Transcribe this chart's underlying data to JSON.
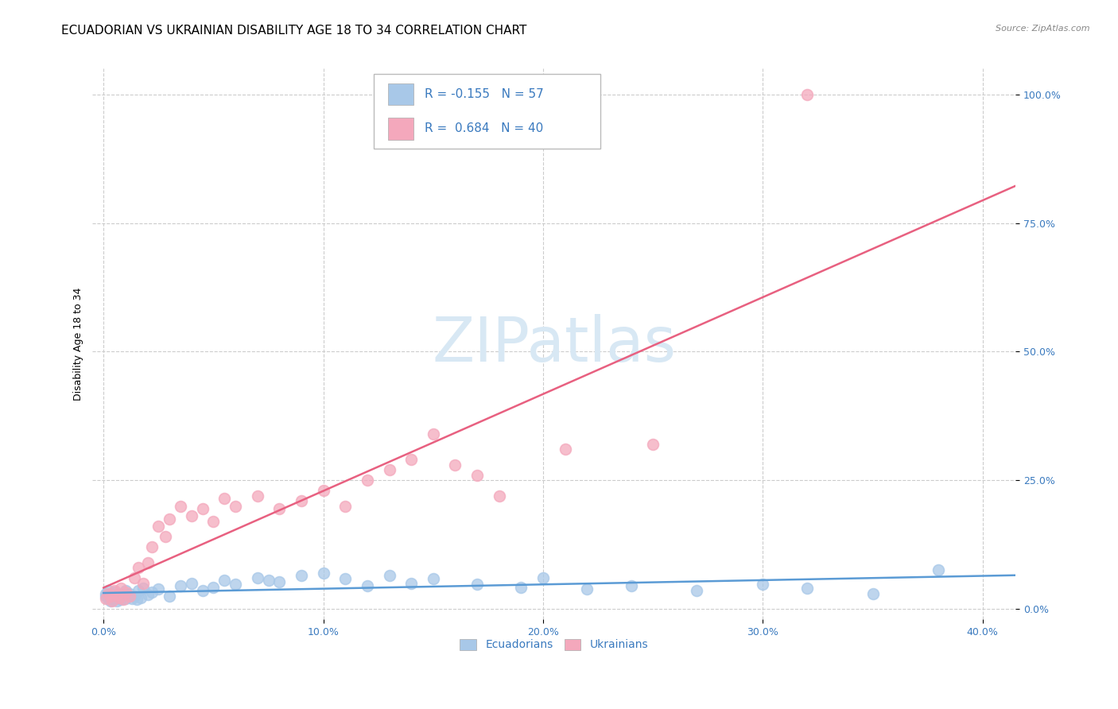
{
  "title": "ECUADORIAN VS UKRAINIAN DISABILITY AGE 18 TO 34 CORRELATION CHART",
  "source": "Source: ZipAtlas.com",
  "xlabel_ticks": [
    "0.0%",
    "10.0%",
    "20.0%",
    "30.0%",
    "40.0%"
  ],
  "xlabel_vals": [
    0.0,
    0.1,
    0.2,
    0.3,
    0.4
  ],
  "ylabel": "Disability Age 18 to 34",
  "ylabel_ticks": [
    "0.0%",
    "25.0%",
    "50.0%",
    "75.0%",
    "100.0%"
  ],
  "ylabel_vals": [
    0.0,
    0.25,
    0.5,
    0.75,
    1.0
  ],
  "xlim": [
    -0.005,
    0.415
  ],
  "ylim": [
    -0.02,
    1.05
  ],
  "ecuadorian_R": -0.155,
  "ecuadorian_N": 57,
  "ukrainian_R": 0.684,
  "ukrainian_N": 40,
  "ecuadorian_color": "#a8c8e8",
  "ukrainian_color": "#f4a8bc",
  "ecuadorian_line_color": "#5b9bd5",
  "ukrainian_line_color": "#e86080",
  "legend_label_ecu": "Ecuadorians",
  "legend_label_ukr": "Ukrainians",
  "title_fontsize": 11,
  "axis_label_fontsize": 9,
  "tick_fontsize": 9,
  "source_fontsize": 8,
  "legend_text_color": "#3a7abf",
  "watermark_color": "#d8e8f4",
  "ecuadorian_x": [
    0.001,
    0.001,
    0.002,
    0.002,
    0.003,
    0.003,
    0.004,
    0.004,
    0.005,
    0.005,
    0.006,
    0.006,
    0.007,
    0.007,
    0.008,
    0.008,
    0.009,
    0.01,
    0.01,
    0.011,
    0.012,
    0.013,
    0.014,
    0.015,
    0.016,
    0.017,
    0.018,
    0.02,
    0.022,
    0.025,
    0.03,
    0.035,
    0.04,
    0.045,
    0.05,
    0.055,
    0.06,
    0.07,
    0.075,
    0.08,
    0.09,
    0.1,
    0.11,
    0.12,
    0.13,
    0.14,
    0.15,
    0.17,
    0.19,
    0.2,
    0.22,
    0.24,
    0.27,
    0.3,
    0.32,
    0.35,
    0.38
  ],
  "ecuadorian_y": [
    0.025,
    0.03,
    0.02,
    0.035,
    0.015,
    0.028,
    0.022,
    0.018,
    0.025,
    0.032,
    0.02,
    0.015,
    0.03,
    0.025,
    0.018,
    0.022,
    0.028,
    0.02,
    0.035,
    0.025,
    0.03,
    0.02,
    0.025,
    0.018,
    0.035,
    0.022,
    0.04,
    0.028,
    0.032,
    0.038,
    0.025,
    0.045,
    0.05,
    0.035,
    0.042,
    0.055,
    0.048,
    0.06,
    0.055,
    0.052,
    0.065,
    0.07,
    0.058,
    0.045,
    0.065,
    0.05,
    0.058,
    0.048,
    0.042,
    0.06,
    0.038,
    0.045,
    0.035,
    0.048,
    0.04,
    0.03,
    0.075
  ],
  "ukrainian_x": [
    0.001,
    0.002,
    0.003,
    0.004,
    0.005,
    0.006,
    0.007,
    0.008,
    0.009,
    0.01,
    0.012,
    0.014,
    0.016,
    0.018,
    0.02,
    0.022,
    0.025,
    0.028,
    0.03,
    0.035,
    0.04,
    0.045,
    0.05,
    0.055,
    0.06,
    0.07,
    0.08,
    0.09,
    0.1,
    0.11,
    0.12,
    0.13,
    0.14,
    0.15,
    0.16,
    0.17,
    0.18,
    0.21,
    0.25,
    0.32
  ],
  "ukrainian_y": [
    0.02,
    0.03,
    0.025,
    0.015,
    0.035,
    0.028,
    0.022,
    0.04,
    0.018,
    0.032,
    0.025,
    0.06,
    0.08,
    0.05,
    0.09,
    0.12,
    0.16,
    0.14,
    0.175,
    0.2,
    0.18,
    0.195,
    0.17,
    0.215,
    0.2,
    0.22,
    0.195,
    0.21,
    0.23,
    0.2,
    0.25,
    0.27,
    0.29,
    0.34,
    0.28,
    0.26,
    0.22,
    0.31,
    0.32,
    1.0
  ]
}
